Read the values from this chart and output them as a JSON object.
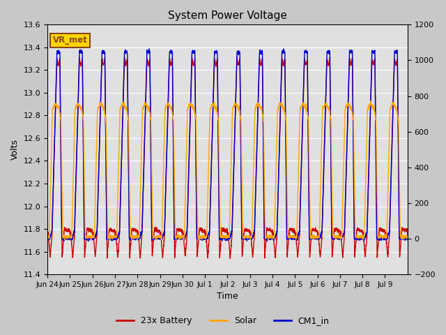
{
  "title": "System Power Voltage",
  "xlabel": "Time",
  "ylabel_left": "Volts",
  "ylim_left": [
    11.4,
    13.6
  ],
  "ylim_right": [
    -200,
    1200
  ],
  "annotation_text": "VR_met",
  "annotation_color": "#8B4513",
  "annotation_bg": "#FFD700",
  "annotation_edge": "#8B4513",
  "fig_bg_color": "#C8C8C8",
  "plot_bg_color": "#E0E0E0",
  "line_colors": {
    "battery": "#CC0000",
    "solar": "#FFA500",
    "cm1": "#0000CC"
  },
  "line_width": 1.0,
  "legend_labels": [
    "23x Battery",
    "Solar",
    "CM1_in"
  ],
  "xtick_labels": [
    "Jun 24",
    "Jun 25",
    "Jun 26",
    "Jun 27",
    "Jun 28",
    "Jun 29",
    "Jun 30",
    "Jul 1",
    "Jul 2",
    "Jul 3",
    "Jul 4",
    "Jul 5",
    "Jul 6",
    "Jul 7",
    "Jul 8",
    "Jul 9"
  ],
  "yticks_left": [
    11.4,
    11.6,
    11.8,
    12.0,
    12.2,
    12.4,
    12.6,
    12.8,
    13.0,
    13.2,
    13.4,
    13.6
  ],
  "yticks_right": [
    -200,
    0,
    200,
    400,
    600,
    800,
    1000,
    1200
  ],
  "grid_color": "#FFFFFF",
  "days_total": 16
}
